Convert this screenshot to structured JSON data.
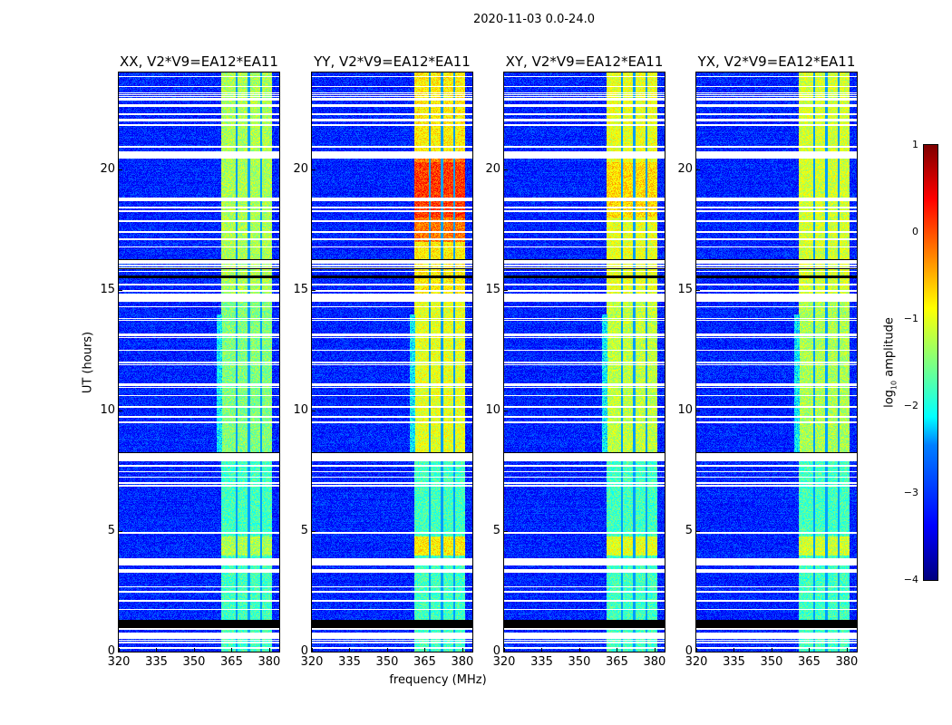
{
  "chart_data": {
    "type": "heatmap",
    "title": "2020-11-03 0.0-24.0",
    "xlabel": "frequency (MHz)",
    "ylabel": "UT (hours)",
    "xlim": [
      320,
      384
    ],
    "ylim": [
      0,
      24
    ],
    "xticks": [
      "320",
      "335",
      "350",
      "365",
      "380"
    ],
    "yticks": [
      "0",
      "5",
      "10",
      "15",
      "20"
    ],
    "panels": [
      {
        "title": "XX, V2*V9=EA12*EA11",
        "band_level": -1.3
      },
      {
        "title": "YY, V2*V9=EA12*EA11",
        "band_level": -0.8
      },
      {
        "title": "XY, V2*V9=EA12*EA11",
        "band_level": -1.0
      },
      {
        "title": "YX, V2*V9=EA12*EA11",
        "band_level": -1.1
      }
    ],
    "background_level": -3.2,
    "bright_band_mhz": [
      360.5,
      381
    ],
    "flagged_white_ut": [
      [
        0.55,
        0.8
      ],
      [
        2.45,
        2.55
      ],
      [
        3.3,
        3.45
      ],
      [
        3.6,
        3.85
      ],
      [
        7.9,
        8.25
      ],
      [
        14.5,
        14.85
      ],
      [
        20.45,
        20.75
      ],
      [
        22.0,
        22.1
      ],
      [
        22.6,
        22.7
      ],
      [
        23.4,
        23.45
      ]
    ],
    "flagged_black_ut": [
      [
        1.0,
        1.35
      ],
      [
        15.5,
        15.6
      ],
      [
        15.85,
        15.95
      ],
      [
        16.2,
        16.3
      ],
      [
        8.2,
        8.3
      ]
    ],
    "colorbar": {
      "label": "log10 amplitude",
      "label_main": "log",
      "label_sub": "10",
      "label_rest": " amplitude",
      "range": [
        -4,
        1
      ],
      "ticks": [
        "1",
        "0",
        "−1",
        "−2",
        "−3",
        "−4"
      ],
      "colormap": "jet"
    }
  }
}
